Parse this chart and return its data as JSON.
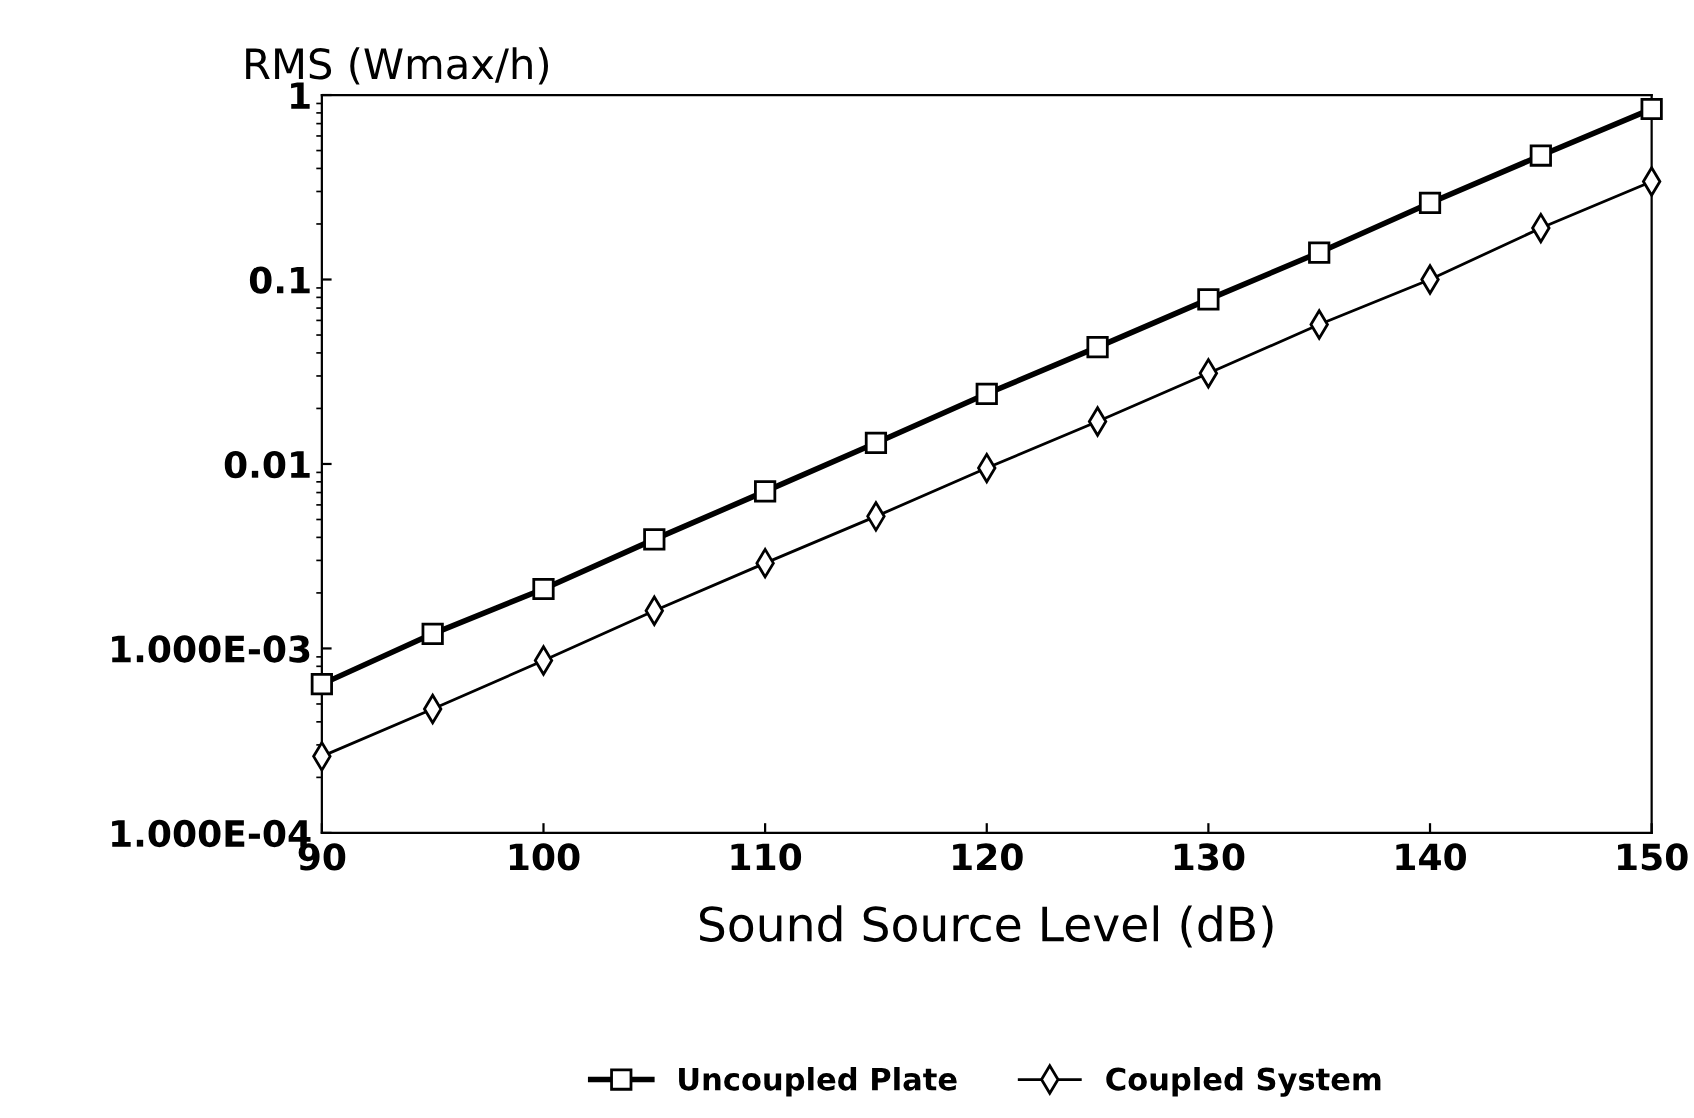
{
  "chart_data": {
    "type": "line",
    "ylabel": "RMS (Wmax/h)",
    "xlabel": "Sound Source Level (dB)",
    "x": [
      90,
      95,
      100,
      105,
      110,
      115,
      120,
      125,
      130,
      135,
      140,
      145,
      150
    ],
    "series": [
      {
        "name": "Uncoupled Plate",
        "color": "#000000",
        "marker": "square",
        "values": [
          0.00064,
          0.0012,
          0.0021,
          0.0039,
          0.0071,
          0.013,
          0.024,
          0.043,
          0.078,
          0.14,
          0.26,
          0.47,
          0.84
        ]
      },
      {
        "name": "Coupled System",
        "color": "#000000",
        "marker": "diamond",
        "values": [
          0.00026,
          0.00047,
          0.00086,
          0.0016,
          0.0029,
          0.0052,
          0.0095,
          0.017,
          0.031,
          0.057,
          0.1,
          0.19,
          0.34
        ]
      }
    ],
    "log": "y",
    "xlim": [
      90,
      150
    ],
    "ylim": [
      0.0001,
      1
    ],
    "xticks": [
      90,
      100,
      110,
      120,
      130,
      140,
      150
    ],
    "yticks": [
      {
        "value": 0.0001,
        "label": "1.000E-04"
      },
      {
        "value": 0.001,
        "label": "1.000E-03"
      },
      0.01,
      0.1,
      1
    ],
    "grid": false,
    "legend": "bottom",
    "line_style": "solid"
  }
}
